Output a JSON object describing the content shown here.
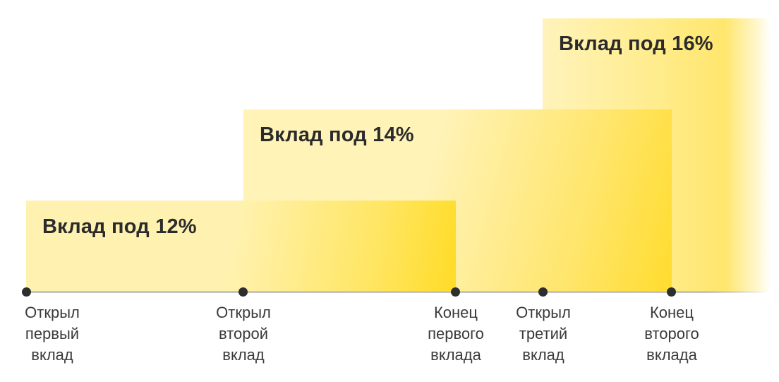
{
  "deposits": [
    {
      "label": "Вклад под 12%"
    },
    {
      "label": "Вклад под 14%"
    },
    {
      "label": "Вклад под 16%"
    }
  ],
  "timeline_points": [
    {
      "lines": [
        "Открыл",
        "первый",
        "вклад"
      ]
    },
    {
      "lines": [
        "Открыл",
        "второй",
        "вклад"
      ]
    },
    {
      "lines": [
        "Конец",
        "первого",
        "вклада"
      ]
    },
    {
      "lines": [
        "Открыл",
        "третий",
        "вклад"
      ]
    },
    {
      "lines": [
        "Конец",
        "второго",
        "вклада"
      ]
    }
  ],
  "colors": {
    "bar_light": "#fff2b0",
    "bar_strong": "#ffdb26",
    "timeline": "#c4c4c4",
    "point": "#2e2e2e",
    "text": "#2b2b2b"
  }
}
